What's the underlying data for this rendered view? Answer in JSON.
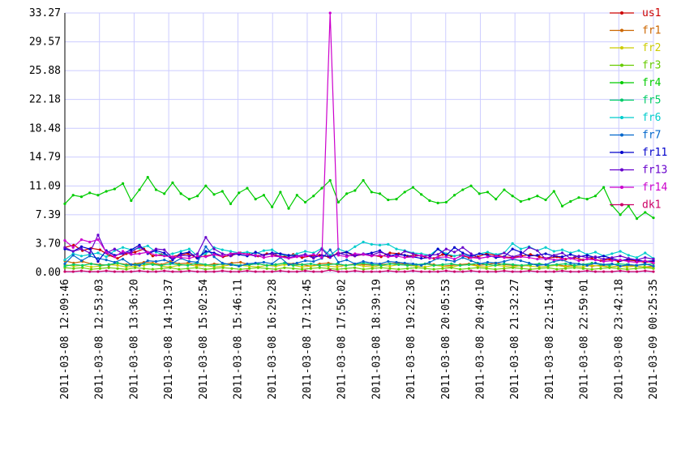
{
  "chart_data": {
    "type": "line",
    "grid": true,
    "legend_position": "right",
    "ylim": [
      0.0,
      33.27
    ],
    "y_ticks": [
      "0.00",
      "3.70",
      "7.39",
      "11.09",
      "14.79",
      "18.48",
      "22.18",
      "25.88",
      "29.57",
      "33.27"
    ],
    "x_tick_labels": [
      "2011-03-08 12:09:46",
      "2011-03-08 12:53:03",
      "2011-03-08 13:36:20",
      "2011-03-08 14:19:37",
      "2011-03-08 15:02:54",
      "2011-03-08 15:46:11",
      "2011-03-08 16:29:28",
      "2011-03-08 17:12:45",
      "2011-03-08 17:56:02",
      "2011-03-08 18:39:19",
      "2011-03-08 19:22:36",
      "2011-03-08 20:05:53",
      "2011-03-08 20:49:10",
      "2011-03-08 21:32:27",
      "2011-03-08 22:15:44",
      "2011-03-08 22:59:01",
      "2011-03-08 23:42:18",
      "2011-03-09 00:25:35"
    ],
    "series": [
      {
        "name": "us1",
        "color": "#cc0000",
        "values": [
          3.2,
          3.5,
          2.8,
          3.1,
          2.9,
          2.2,
          1.8,
          2.4,
          2.6,
          3.0,
          2.1,
          2.3,
          2.0,
          2.2,
          2.4,
          1.9,
          2.1,
          2.3,
          2.0,
          2.2,
          2.5,
          2.3,
          2.1,
          2.4,
          2.2,
          2.0,
          2.3,
          1.9,
          2.1,
          2.2,
          2.0,
          2.4,
          2.6,
          2.1,
          2.3,
          2.2,
          2.0,
          2.5,
          2.4,
          2.1,
          2.2,
          2.0,
          1.8,
          2.3,
          2.1,
          2.2,
          1.9,
          2.0,
          2.4,
          2.2,
          2.0,
          1.9,
          2.1,
          2.3,
          2.0,
          1.8,
          2.0,
          1.7,
          1.9,
          1.6,
          1.8,
          1.5,
          1.7,
          1.4,
          1.6,
          1.5,
          1.3,
          1.4
        ]
      },
      {
        "name": "fr1",
        "color": "#cc6600",
        "values": [
          1.5,
          1.2,
          1.4,
          1.1,
          1.0,
          0.9,
          1.2,
          1.0,
          1.1,
          1.3,
          1.2,
          1.0,
          1.4,
          1.1,
          1.2,
          1.0,
          0.9,
          1.1,
          1.0,
          1.2,
          1.3,
          1.0,
          1.1,
          0.9,
          1.0,
          1.2,
          1.1,
          1.0,
          0.8,
          1.1,
          1.2,
          1.0,
          0.9,
          1.1,
          1.0,
          0.9,
          1.0,
          1.1,
          1.2,
          1.0,
          0.9,
          1.1,
          1.0,
          0.8,
          0.9,
          1.0,
          1.1,
          0.9,
          1.0,
          1.2,
          1.0,
          0.9,
          0.8,
          1.0,
          1.1,
          0.9,
          1.0,
          0.8,
          0.9,
          1.0,
          0.8,
          0.9,
          0.7,
          0.8,
          0.9,
          0.8,
          0.7,
          0.8
        ]
      },
      {
        "name": "fr2",
        "color": "#cccc00",
        "values": [
          1.0,
          0.8,
          0.9,
          0.7,
          0.8,
          1.0,
          0.9,
          0.7,
          0.8,
          0.9,
          1.1,
          0.8,
          0.7,
          0.9,
          1.0,
          0.8,
          0.9,
          0.7,
          0.8,
          1.0,
          0.9,
          0.8,
          0.7,
          0.9,
          0.8,
          1.0,
          0.9,
          0.7,
          0.8,
          0.9,
          0.8,
          0.7,
          0.9,
          1.0,
          0.8,
          0.7,
          0.9,
          0.8,
          1.0,
          0.9,
          0.8,
          0.7,
          0.9,
          0.8,
          0.7,
          0.9,
          1.0,
          0.8,
          0.7,
          0.9,
          0.8,
          0.7,
          0.9,
          0.8,
          0.7,
          0.8,
          0.9,
          0.7,
          0.8,
          0.7,
          0.9,
          0.8,
          0.7,
          0.8,
          0.7,
          0.8,
          0.7,
          0.6
        ]
      },
      {
        "name": "fr3",
        "color": "#66cc00",
        "values": [
          0.6,
          0.5,
          0.6,
          0.4,
          0.5,
          0.6,
          0.5,
          0.4,
          0.6,
          0.5,
          0.4,
          0.5,
          0.6,
          0.4,
          0.5,
          0.6,
          0.4,
          0.5,
          0.6,
          0.5,
          0.4,
          0.5,
          0.6,
          0.5,
          0.4,
          0.6,
          0.5,
          0.4,
          0.5,
          0.6,
          0.5,
          0.4,
          0.5,
          0.6,
          0.4,
          0.5,
          0.6,
          0.5,
          0.4,
          0.5,
          0.6,
          0.5,
          0.4,
          0.5,
          0.6,
          0.4,
          0.5,
          0.6,
          0.5,
          0.4,
          0.5,
          0.6,
          0.5,
          0.4,
          0.5,
          0.6,
          0.4,
          0.5,
          0.6,
          0.5,
          0.4,
          0.5,
          0.6,
          0.5,
          0.4,
          0.5,
          0.6,
          0.5
        ]
      },
      {
        "name": "fr4",
        "color": "#00cc00",
        "values": [
          8.8,
          9.9,
          9.7,
          10.2,
          9.9,
          10.4,
          10.7,
          11.4,
          9.2,
          10.6,
          12.2,
          10.6,
          10.1,
          11.5,
          10.1,
          9.4,
          9.8,
          11.1,
          10.0,
          10.4,
          8.8,
          10.2,
          10.8,
          9.4,
          9.9,
          8.4,
          10.3,
          8.2,
          9.9,
          9.0,
          9.8,
          10.8,
          11.8,
          9.0,
          10.1,
          10.5,
          11.8,
          10.3,
          10.1,
          9.3,
          9.4,
          10.3,
          10.9,
          10.0,
          9.2,
          8.9,
          9.0,
          9.9,
          10.6,
          11.1,
          10.1,
          10.3,
          9.4,
          10.6,
          9.8,
          9.1,
          9.4,
          9.8,
          9.3,
          10.4,
          8.5,
          9.1,
          9.6,
          9.4,
          9.8,
          10.9,
          8.6,
          7.4,
          8.5,
          6.9,
          7.7,
          7.0
        ]
      },
      {
        "name": "fr5",
        "color": "#00cc66",
        "values": [
          0.8,
          1.0,
          0.9,
          1.1,
          0.9,
          1.0,
          1.2,
          0.9,
          1.0,
          1.1,
          1.0,
          0.9,
          1.1,
          1.0,
          0.9,
          1.2,
          1.0,
          0.9,
          1.1,
          1.0,
          0.9,
          1.0,
          1.1,
          0.9,
          1.0,
          1.2,
          0.9,
          1.0,
          1.1,
          0.9,
          1.0,
          1.1,
          0.9,
          1.0,
          1.2,
          1.0,
          0.9,
          1.1,
          1.0,
          0.9,
          1.0,
          1.1,
          0.9,
          1.0,
          1.1,
          0.9,
          1.0,
          1.2,
          1.0,
          0.9,
          1.1,
          1.0,
          0.9,
          1.0,
          1.1,
          0.9,
          1.0,
          1.1,
          0.9,
          1.0,
          1.2,
          1.0,
          0.9,
          1.1,
          1.0,
          0.9,
          1.0,
          1.1
        ]
      },
      {
        "name": "fr6",
        "color": "#00cccc",
        "values": [
          1.6,
          2.4,
          2.1,
          2.3,
          2.5,
          2.0,
          2.8,
          3.2,
          2.9,
          3.1,
          3.4,
          2.6,
          2.2,
          2.4,
          2.7,
          3.0,
          2.1,
          2.4,
          3.2,
          2.9,
          2.7,
          2.5,
          2.6,
          2.4,
          2.8,
          2.9,
          2.3,
          2.1,
          2.4,
          2.7,
          2.5,
          3.1,
          2.2,
          3.0,
          2.6,
          3.3,
          3.9,
          3.6,
          3.5,
          3.6,
          3.0,
          2.8,
          2.5,
          2.4,
          2.2,
          3.0,
          2.4,
          2.1,
          2.3,
          2.0,
          2.4,
          2.6,
          2.3,
          2.5,
          3.7,
          3.0,
          3.3,
          2.8,
          3.2,
          2.7,
          2.9,
          2.5,
          2.8,
          2.3,
          2.6,
          2.1,
          2.4,
          2.7,
          2.2,
          1.9,
          2.5,
          1.8
        ]
      },
      {
        "name": "fr7",
        "color": "#0066cc",
        "values": [
          1.1,
          2.2,
          1.5,
          2.1,
          1.8,
          1.6,
          1.3,
          1.7,
          1.0,
          0.9,
          1.5,
          1.4,
          1.6,
          1.2,
          1.8,
          1.4,
          1.3,
          3.3,
          2.0,
          1.2,
          1.0,
          0.8,
          1.1,
          1.2,
          1.3,
          1.1,
          1.9,
          1.0,
          1.2,
          1.5,
          1.4,
          1.8,
          2.9,
          1.3,
          1.6,
          1.1,
          1.4,
          1.2,
          1.1,
          1.4,
          1.3,
          1.2,
          1.1,
          0.9,
          1.3,
          1.8,
          1.6,
          1.4,
          1.9,
          1.5,
          1.1,
          1.3,
          1.2,
          1.4,
          1.7,
          1.5,
          1.2,
          0.9,
          1.0,
          1.4,
          1.6,
          1.2,
          1.1,
          0.9,
          1.2,
          1.0,
          1.1,
          0.8,
          1.0,
          0.9,
          1.1,
          0.8
        ]
      },
      {
        "name": "fr11",
        "color": "#0000cc",
        "values": [
          3.0,
          2.7,
          3.3,
          3.0,
          1.4,
          2.8,
          2.2,
          2.4,
          2.9,
          3.5,
          2.4,
          2.8,
          2.5,
          1.6,
          2.4,
          2.6,
          1.8,
          2.7,
          2.5,
          2.1,
          2.4,
          2.3,
          2.1,
          2.6,
          2.2,
          2.5,
          2.4,
          2.2,
          2.1,
          2.3,
          1.9,
          2.2,
          2.0,
          2.4,
          2.6,
          2.2,
          2.3,
          2.5,
          2.8,
          2.1,
          2.3,
          2.2,
          2.0,
          1.8,
          1.9,
          3.0,
          2.2,
          3.2,
          2.5,
          2.1,
          2.4,
          2.2,
          1.9,
          2.0,
          3.0,
          2.6,
          2.1,
          2.2,
          2.4,
          2.1,
          2.0,
          2.3,
          2.0,
          2.2,
          1.9,
          2.1,
          1.8,
          1.5,
          1.7,
          1.6,
          1.4,
          1.5
        ]
      },
      {
        "name": "fr13",
        "color": "#6600cc",
        "values": [
          3.2,
          2.7,
          3.0,
          2.5,
          4.8,
          2.5,
          3.0,
          2.4,
          2.6,
          3.3,
          2.5,
          3.0,
          2.9,
          1.8,
          2.2,
          2.1,
          2.4,
          4.5,
          3.0,
          2.4,
          2.1,
          2.5,
          2.3,
          2.1,
          2.2,
          2.4,
          2.0,
          1.9,
          2.1,
          2.3,
          1.8,
          3.0,
          1.9,
          2.5,
          2.2,
          2.1,
          2.4,
          2.2,
          2.6,
          2.3,
          2.0,
          2.7,
          2.4,
          2.1,
          2.2,
          2.3,
          3.0,
          2.6,
          3.2,
          2.4,
          1.8,
          2.0,
          2.1,
          2.5,
          2.0,
          2.3,
          3.2,
          2.8,
          1.7,
          2.2,
          2.5,
          1.8,
          2.1,
          1.9,
          2.0,
          1.7,
          1.9,
          2.1,
          1.8,
          1.6,
          1.9,
          1.7
        ]
      },
      {
        "name": "fr14",
        "color": "#cc00cc",
        "values": [
          4.1,
          3.2,
          4.2,
          3.9,
          4.2,
          2.6,
          2.0,
          2.7,
          2.3,
          2.4,
          2.6,
          2.2,
          2.1,
          2.0,
          1.9,
          1.8,
          2.1,
          2.0,
          2.3,
          2.1,
          2.4,
          2.5,
          2.3,
          2.2,
          1.9,
          2.1,
          2.0,
          1.8,
          2.0,
          2.1,
          2.3,
          1.9,
          33.27,
          2.2,
          2.0,
          2.4,
          2.3,
          2.1,
          2.2,
          2.0,
          2.1,
          1.9,
          2.0,
          2.2,
          1.8,
          1.9,
          2.0,
          1.7,
          2.2,
          1.9,
          1.8,
          2.0,
          2.1,
          1.9,
          1.8,
          2.0,
          1.9,
          1.7,
          1.8,
          1.6,
          1.7,
          1.8,
          1.5,
          1.7,
          1.6,
          1.4,
          1.5,
          1.6,
          1.4,
          1.3,
          1.5,
          1.2
        ]
      },
      {
        "name": "dk1",
        "color": "#cc0066",
        "values": [
          0.1,
          0.1,
          0.2,
          0.1,
          0.1,
          0.2,
          0.1,
          0.1,
          0.1,
          0.2,
          0.1,
          0.1,
          0.2,
          0.1,
          0.1,
          0.2,
          0.1,
          0.1,
          0.1,
          0.2,
          0.1,
          0.1,
          0.2,
          0.1,
          0.1,
          0.1,
          0.2,
          0.1,
          0.1,
          0.2,
          0.1,
          0.1,
          0.3,
          0.1,
          0.1,
          0.2,
          0.1,
          0.1,
          0.1,
          0.2,
          0.1,
          0.1,
          0.2,
          0.1,
          0.1,
          0.1,
          0.2,
          0.1,
          0.1,
          0.2,
          0.1,
          0.1,
          0.1,
          0.2,
          0.1,
          0.1,
          0.2,
          0.1,
          0.1,
          0.1,
          0.2,
          0.1,
          0.1,
          0.2,
          0.1,
          0.1,
          0.1,
          0.2,
          0.1,
          0.1,
          0.2,
          0.1
        ]
      }
    ]
  }
}
